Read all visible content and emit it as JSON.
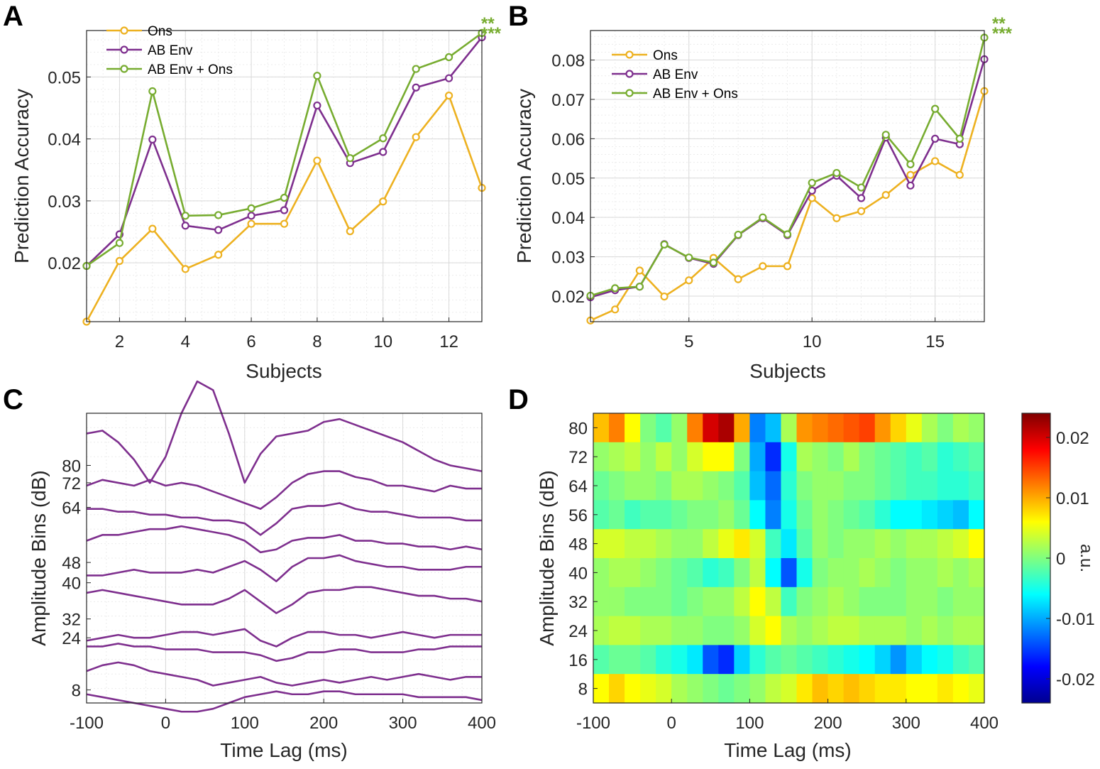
{
  "panels": {
    "A": {
      "letter": "A",
      "chart_data": {
        "type": "line",
        "xlabel": "Subjects",
        "ylabel": "Prediction Accuracy",
        "xlim": [
          1,
          13
        ],
        "ylim": [
          0.0105,
          0.0575
        ],
        "xticks": [
          2,
          4,
          6,
          8,
          10,
          12
        ],
        "yticks": [
          0.02,
          0.03,
          0.04,
          0.05
        ],
        "ytick_labels": [
          "0.02",
          "0.03",
          "0.04",
          "0.05"
        ],
        "grid": true,
        "legend": "top-left",
        "x": [
          1,
          2,
          3,
          4,
          5,
          6,
          7,
          8,
          9,
          10,
          11,
          12,
          13
        ],
        "series": [
          {
            "name": "Ons",
            "color": "#EDB120",
            "values": [
              0.0105,
              0.0203,
              0.0255,
              0.019,
              0.0213,
              0.0263,
              0.0263,
              0.0365,
              0.0251,
              0.0299,
              0.0403,
              0.047,
              0.0321
            ]
          },
          {
            "name": "AB Env",
            "color": "#7E2F8E",
            "values": [
              0.0195,
              0.0246,
              0.0399,
              0.026,
              0.0253,
              0.0276,
              0.0285,
              0.0454,
              0.0361,
              0.0379,
              0.0483,
              0.0498,
              0.0564
            ]
          },
          {
            "name": "AB Env + Ons",
            "color": "#77AC30",
            "values": [
              0.0195,
              0.0232,
              0.0477,
              0.0276,
              0.0277,
              0.0288,
              0.0305,
              0.0502,
              0.0369,
              0.0401,
              0.0513,
              0.0532,
              0.0571
            ]
          }
        ],
        "annotations": [
          {
            "text": "**",
            "color": "#77AC30"
          },
          {
            "text": "***",
            "color": "#77AC30"
          }
        ]
      }
    },
    "B": {
      "letter": "B",
      "chart_data": {
        "type": "line",
        "xlabel": "Subjects",
        "ylabel": "Prediction Accuracy",
        "xlim": [
          1,
          17
        ],
        "ylim": [
          0.0135,
          0.0875
        ],
        "xticks": [
          5,
          10,
          15
        ],
        "yticks": [
          0.02,
          0.03,
          0.04,
          0.05,
          0.06,
          0.07,
          0.08
        ],
        "ytick_labels": [
          "0.02",
          "0.03",
          "0.04",
          "0.05",
          "0.06",
          "0.07",
          "0.08"
        ],
        "grid": true,
        "legend": "top-left",
        "x": [
          1,
          2,
          3,
          4,
          5,
          6,
          7,
          8,
          9,
          10,
          11,
          12,
          13,
          14,
          15,
          16,
          17
        ],
        "series": [
          {
            "name": "Ons",
            "color": "#EDB120",
            "values": [
              0.0138,
              0.0166,
              0.0265,
              0.0199,
              0.024,
              0.0297,
              0.0243,
              0.0276,
              0.0276,
              0.0449,
              0.0398,
              0.0416,
              0.0457,
              0.0508,
              0.0543,
              0.0508,
              0.0721
            ]
          },
          {
            "name": "AB Env",
            "color": "#7E2F8E",
            "values": [
              0.0197,
              0.0215,
              0.0224,
              0.0332,
              0.0297,
              0.0282,
              0.0355,
              0.0398,
              0.0355,
              0.0468,
              0.0506,
              0.0449,
              0.0603,
              0.0481,
              0.06,
              0.0586,
              0.0802
            ]
          },
          {
            "name": "AB Env + Ons",
            "color": "#77AC30",
            "values": [
              0.0201,
              0.022,
              0.0224,
              0.0331,
              0.0298,
              0.0285,
              0.0356,
              0.04,
              0.0357,
              0.0488,
              0.0513,
              0.0476,
              0.061,
              0.0535,
              0.0676,
              0.06,
              0.0857
            ]
          }
        ],
        "annotations": [
          {
            "text": "**",
            "color": "#77AC30"
          },
          {
            "text": "***",
            "color": "#77AC30"
          }
        ]
      }
    },
    "C": {
      "letter": "C",
      "chart_data": {
        "type": "line",
        "xlabel": "Time Lag (ms)",
        "ylabel": "Amplitude Bins (dB)",
        "xlim": [
          -100,
          400
        ],
        "xticks": [
          -100,
          0,
          100,
          200,
          300,
          400
        ],
        "ytick_labels": [
          "8",
          "24",
          "32",
          "40",
          "48",
          "64",
          "72",
          "80"
        ],
        "grid": true,
        "color": "#7E2F8E",
        "x": [
          -100,
          -80,
          -60,
          -40,
          -20,
          0,
          20,
          40,
          60,
          80,
          100,
          120,
          140,
          160,
          180,
          200,
          220,
          240,
          260,
          280,
          300,
          320,
          340,
          360,
          380,
          400
        ],
        "traces": [
          {
            "bin": "80",
            "offset": 0.89,
            "values": [
              0.04,
              0.05,
              0.01,
              -0.05,
              -0.13,
              -0.04,
              0.11,
              0.22,
              0.19,
              0.04,
              -0.13,
              -0.03,
              0.03,
              0.04,
              0.05,
              0.08,
              0.09,
              0.07,
              0.05,
              0.03,
              0.01,
              -0.02,
              -0.05,
              -0.07,
              -0.08,
              -0.09
            ]
          },
          {
            "bin": "72",
            "offset": 0.75,
            "values": [
              0.0,
              0.02,
              0.01,
              0.0,
              0.02,
              0.0,
              0.01,
              0.0,
              -0.02,
              -0.04,
              -0.06,
              -0.08,
              -0.04,
              0.01,
              0.04,
              0.05,
              0.05,
              0.03,
              0.02,
              0.0,
              0.0,
              -0.01,
              -0.02,
              0.0,
              -0.01,
              -0.01
            ]
          },
          {
            "bin": "64",
            "offset": 0.67,
            "values": [
              0.0,
              0.0,
              -0.01,
              -0.01,
              -0.02,
              -0.02,
              -0.03,
              -0.03,
              -0.04,
              -0.04,
              -0.05,
              -0.09,
              -0.05,
              0.0,
              0.01,
              0.01,
              0.02,
              0.0,
              -0.01,
              -0.01,
              -0.02,
              -0.03,
              -0.03,
              -0.03,
              -0.04,
              -0.04
            ]
          },
          {
            "bin": "56",
            "offset": 0.56,
            "values": [
              0.0,
              0.02,
              0.02,
              0.03,
              0.04,
              0.04,
              0.05,
              0.04,
              0.03,
              0.02,
              0.0,
              -0.04,
              -0.03,
              0.0,
              0.01,
              0.01,
              0.02,
              0.0,
              0.0,
              -0.01,
              -0.01,
              -0.02,
              -0.02,
              -0.03,
              -0.02,
              -0.03
            ]
          },
          {
            "bin": "48",
            "offset": 0.45,
            "values": [
              -0.01,
              -0.01,
              0.0,
              0.01,
              0.0,
              0.0,
              0.0,
              0.01,
              0.0,
              0.02,
              0.04,
              0.01,
              -0.03,
              0.02,
              0.05,
              0.05,
              0.06,
              0.04,
              0.03,
              0.02,
              0.02,
              0.01,
              0.01,
              0.01,
              0.02,
              0.02
            ]
          },
          {
            "bin": "40",
            "offset": 0.38,
            "values": [
              0.0,
              0.01,
              0.0,
              -0.01,
              -0.02,
              -0.03,
              -0.04,
              -0.04,
              -0.04,
              -0.02,
              0.01,
              -0.03,
              -0.07,
              -0.04,
              0.0,
              0.01,
              0.01,
              0.02,
              0.02,
              0.01,
              0.0,
              -0.01,
              -0.01,
              -0.02,
              -0.02,
              -0.03
            ]
          },
          {
            "bin": "32",
            "offset": 0.235,
            "values": [
              -0.02,
              -0.01,
              0.0,
              -0.01,
              -0.01,
              0.0,
              0.01,
              0.01,
              0.0,
              0.01,
              0.02,
              -0.02,
              -0.04,
              -0.01,
              0.01,
              0.01,
              0.0,
              0.0,
              -0.01,
              0.0,
              0.01,
              0.0,
              -0.01,
              0.0,
              0.0,
              0.0
            ]
          },
          {
            "bin": "24",
            "offset": 0.195,
            "values": [
              0.0,
              0.0,
              0.01,
              0.0,
              0.0,
              -0.01,
              -0.01,
              -0.01,
              -0.02,
              -0.02,
              -0.02,
              -0.03,
              -0.05,
              -0.04,
              -0.02,
              -0.02,
              -0.01,
              -0.01,
              -0.02,
              -0.02,
              -0.02,
              -0.01,
              -0.01,
              0.0,
              0.0,
              0.0
            ]
          },
          {
            "bin": "16",
            "offset": 0.11,
            "values": [
              0.0,
              0.02,
              0.03,
              0.02,
              0.0,
              -0.01,
              -0.02,
              -0.03,
              -0.05,
              -0.04,
              -0.03,
              -0.02,
              -0.04,
              -0.05,
              -0.04,
              -0.03,
              -0.04,
              -0.03,
              -0.02,
              -0.03,
              -0.02,
              -0.01,
              -0.02,
              -0.03,
              -0.02,
              -0.02
            ]
          },
          {
            "bin": "8",
            "offset": 0.03,
            "values": [
              0.0,
              -0.01,
              -0.02,
              -0.03,
              -0.04,
              -0.05,
              -0.06,
              -0.06,
              -0.05,
              -0.03,
              -0.01,
              0.0,
              0.01,
              0.0,
              0.0,
              0.01,
              0.01,
              0.0,
              0.0,
              0.0,
              0.0,
              -0.01,
              -0.01,
              -0.01,
              -0.01,
              -0.02
            ]
          }
        ]
      }
    },
    "D": {
      "letter": "D",
      "colorbar_label": "a.u.",
      "chart_data": {
        "type": "heatmap",
        "xlabel": "Time Lag (ms)",
        "ylabel": "Amplitude Bins (dB)",
        "xlim": [
          -100,
          400
        ],
        "xticks": [
          -100,
          0,
          100,
          200,
          300,
          400
        ],
        "rows": [
          "80",
          "72",
          "64",
          "56",
          "48",
          "40",
          "32",
          "24",
          "16",
          "8"
        ],
        "cols": [
          -100,
          -80,
          -60,
          -40,
          -20,
          0,
          20,
          40,
          60,
          80,
          100,
          120,
          140,
          160,
          180,
          200,
          220,
          240,
          260,
          280,
          300,
          320,
          340,
          360,
          380
        ],
        "clim": [
          -0.024,
          0.024
        ],
        "colorbar_ticks": [
          -0.02,
          -0.01,
          0,
          0.01,
          0.02
        ],
        "colorbar_tick_labels": [
          "-0.02",
          "-0.01",
          "0",
          "0.01",
          "0.02"
        ],
        "values": [
          [
            0.009,
            0.012,
            0.006,
            0.0,
            -0.002,
            0.001,
            0.012,
            0.02,
            0.022,
            0.01,
            -0.012,
            -0.009,
            0.002,
            0.011,
            0.012,
            0.013,
            0.014,
            0.015,
            0.011,
            0.008,
            0.005,
            0.002,
            0.0,
            0.002,
            0.001
          ],
          [
            0.001,
            0.002,
            0.003,
            0.001,
            0.003,
            0.001,
            0.004,
            0.006,
            0.006,
            0.0,
            -0.01,
            -0.016,
            -0.005,
            0.002,
            0.001,
            0.0,
            0.002,
            0.0,
            -0.001,
            -0.002,
            -0.003,
            -0.002,
            -0.004,
            -0.003,
            -0.002
          ],
          [
            -0.001,
            0.0,
            0.001,
            0.001,
            0.0,
            0.002,
            0.002,
            0.001,
            0.0,
            -0.002,
            -0.009,
            -0.013,
            -0.004,
            0.0,
            0.001,
            0.001,
            0.0,
            0.0,
            -0.001,
            -0.002,
            -0.003,
            -0.003,
            -0.004,
            -0.004,
            -0.003
          ],
          [
            -0.002,
            -0.001,
            -0.003,
            -0.002,
            -0.002,
            -0.001,
            0.0,
            0.0,
            0.001,
            -0.001,
            -0.006,
            -0.012,
            -0.005,
            -0.001,
            0.001,
            0.0,
            -0.001,
            -0.002,
            -0.004,
            -0.006,
            -0.006,
            -0.007,
            -0.008,
            -0.009,
            -0.006
          ],
          [
            0.004,
            0.004,
            0.003,
            0.003,
            0.002,
            0.001,
            0.001,
            0.003,
            0.005,
            0.007,
            0.004,
            -0.003,
            -0.007,
            -0.002,
            0.001,
            0.0,
            0.001,
            0.001,
            0.002,
            0.001,
            0.002,
            0.002,
            0.003,
            0.004,
            0.006
          ],
          [
            0.001,
            0.002,
            0.002,
            0.001,
            0.0,
            -0.001,
            -0.002,
            -0.004,
            -0.003,
            0.0,
            0.003,
            -0.006,
            -0.014,
            -0.005,
            0.0,
            0.001,
            0.001,
            0.002,
            0.001,
            0.0,
            0.001,
            0.001,
            0.002,
            0.001,
            0.002
          ],
          [
            0.001,
            0.001,
            0.0,
            0.0,
            0.0,
            -0.001,
            0.0,
            0.001,
            0.001,
            0.003,
            0.006,
            0.003,
            -0.003,
            0.0,
            0.001,
            0.002,
            0.001,
            0.0,
            0.0,
            0.0,
            0.001,
            0.001,
            0.0,
            0.001,
            0.001
          ],
          [
            0.002,
            0.003,
            0.003,
            0.002,
            0.002,
            0.001,
            0.001,
            0.0,
            0.0,
            0.001,
            0.004,
            0.006,
            0.002,
            0.001,
            0.002,
            0.003,
            0.003,
            0.002,
            0.002,
            0.002,
            0.001,
            0.002,
            0.001,
            0.002,
            0.002
          ],
          [
            -0.002,
            -0.001,
            -0.001,
            -0.002,
            -0.004,
            -0.005,
            -0.007,
            -0.014,
            -0.016,
            -0.008,
            -0.004,
            -0.002,
            -0.001,
            -0.002,
            -0.003,
            -0.004,
            -0.005,
            -0.006,
            -0.008,
            -0.011,
            -0.008,
            -0.006,
            -0.005,
            -0.003,
            -0.002
          ],
          [
            0.006,
            0.008,
            0.006,
            0.005,
            0.004,
            0.002,
            0.001,
            0.0,
            -0.001,
            0.0,
            0.001,
            0.003,
            0.004,
            0.007,
            0.009,
            0.008,
            0.009,
            0.008,
            0.007,
            0.007,
            0.006,
            0.006,
            0.007,
            0.006,
            0.005
          ]
        ]
      }
    }
  }
}
